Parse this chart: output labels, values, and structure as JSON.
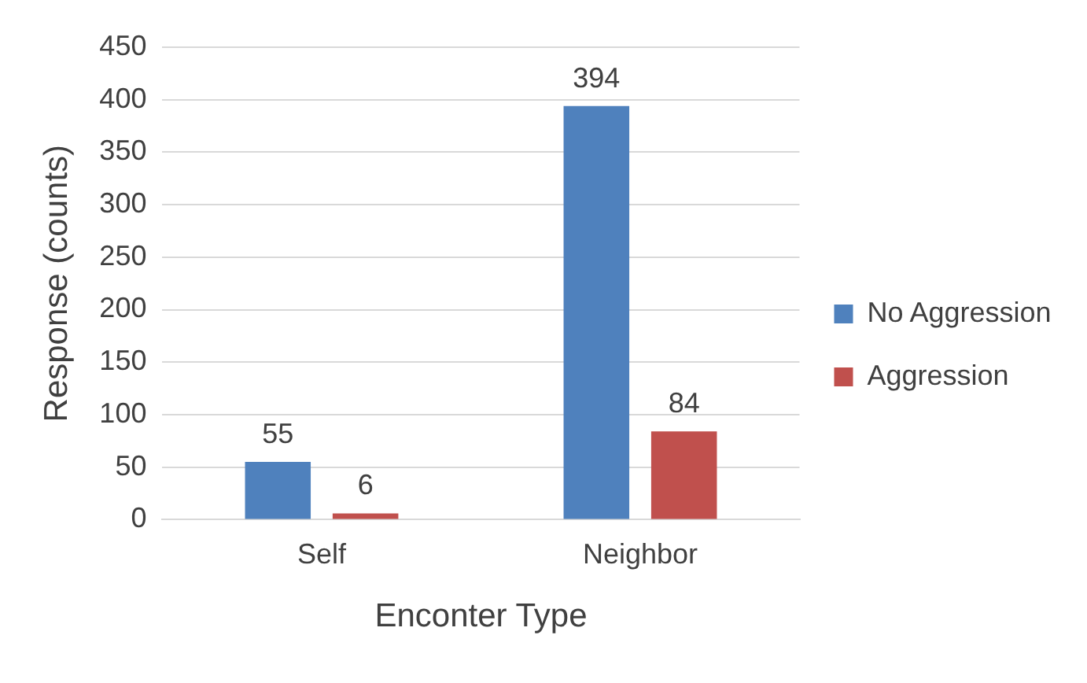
{
  "chart_data": {
    "type": "bar",
    "xlabel": "Enconter Type",
    "ylabel": "Response (counts)",
    "categories": [
      "Self",
      "Neighbor"
    ],
    "series": [
      {
        "name": "No Aggression",
        "color": "#4f81bd",
        "values": [
          55,
          394
        ]
      },
      {
        "name": "Aggression",
        "color": "#c0504d",
        "values": [
          6,
          84
        ]
      }
    ],
    "ylim": [
      0,
      450
    ],
    "yticks": [
      0,
      50,
      100,
      150,
      200,
      250,
      300,
      350,
      400,
      450
    ],
    "grid": "y",
    "legend": "right",
    "data_labels": true
  }
}
